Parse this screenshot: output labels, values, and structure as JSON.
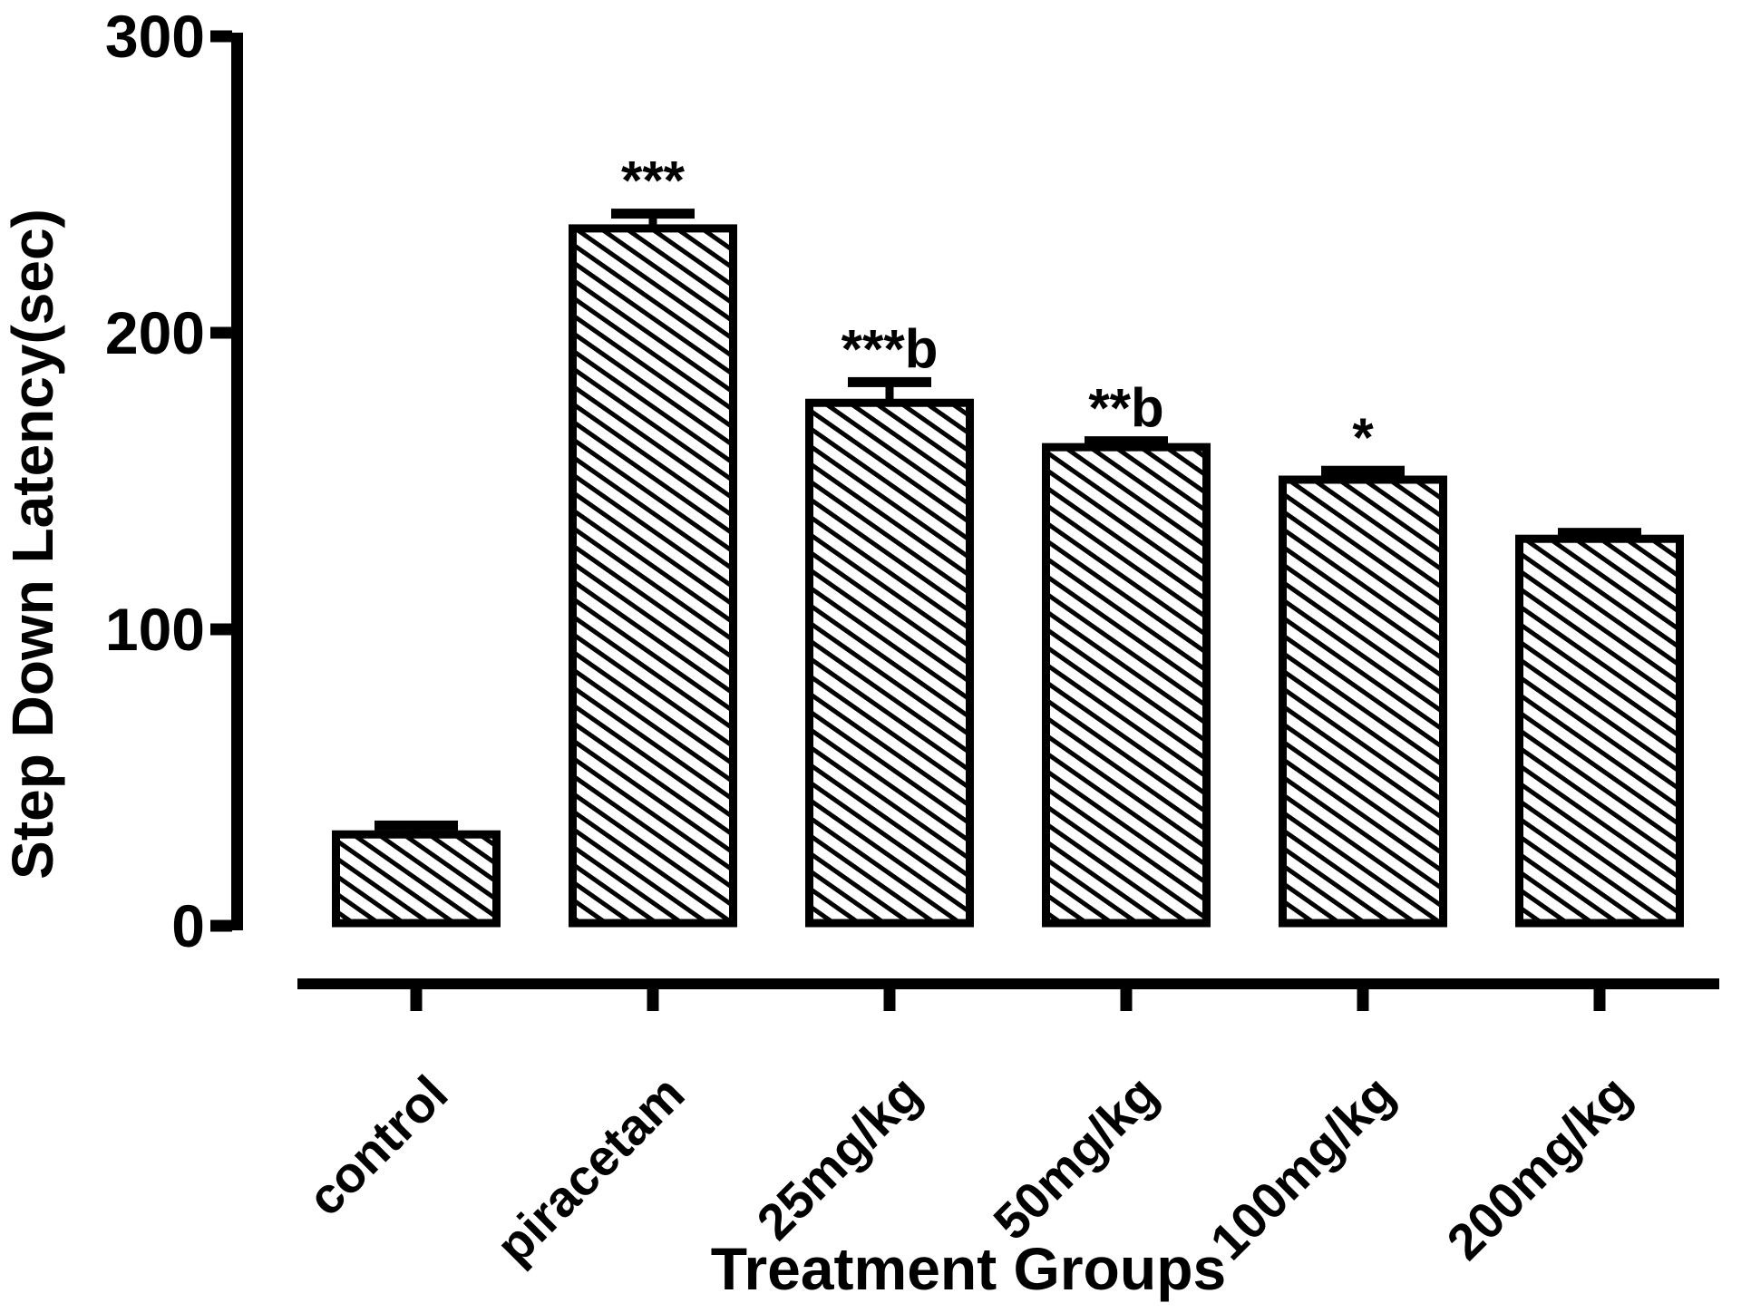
{
  "chart_data": {
    "type": "bar",
    "title": "",
    "xlabel": "Treatment Groups",
    "ylabel": "Step Down Latency(sec)",
    "categories": [
      "control",
      "piracetam",
      "25mg/kg",
      "50mg/kg",
      "100mg/kg",
      "200mg/kg"
    ],
    "values": [
      30,
      235,
      176,
      161,
      150,
      130
    ],
    "sem": [
      3,
      5,
      7,
      2,
      3,
      2
    ],
    "annotations": [
      "",
      "***",
      "***b",
      "**b",
      "*",
      ""
    ],
    "yticks": [
      0,
      100,
      200,
      300
    ],
    "ylim": [
      0,
      300
    ],
    "grid": false,
    "legend": "none",
    "bar_style": "diagonal-hatch",
    "colors": {
      "bar_outline": "#000000",
      "bar_hatch": "#000000",
      "bar_background": "#ffffff",
      "axis": "#000000",
      "text": "#000000",
      "background": "#ffffff"
    }
  }
}
